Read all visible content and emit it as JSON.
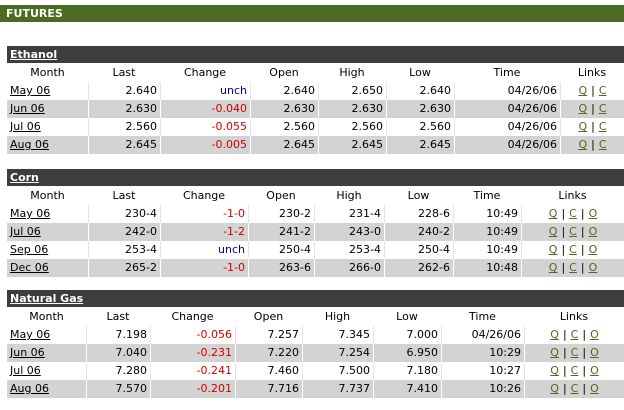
{
  "header": {
    "title": "FUTURES"
  },
  "link_separator": "|",
  "sections": [
    {
      "title": "Ethanol",
      "columns": [
        "Month",
        "Last",
        "Change",
        "Open",
        "High",
        "Low",
        "Time",
        "Links"
      ],
      "rows": [
        {
          "cells": [
            "May 06",
            "2.640",
            "unch",
            "2.640",
            "2.650",
            "2.640",
            "04/26/06"
          ],
          "links": [
            "Q",
            "C"
          ]
        },
        {
          "cells": [
            "Jun 06",
            "2.630",
            "-0.040",
            "2.630",
            "2.630",
            "2.630",
            "04/26/06"
          ],
          "links": [
            "Q",
            "C"
          ]
        },
        {
          "cells": [
            "Jul 06",
            "2.560",
            "-0.055",
            "2.560",
            "2.560",
            "2.560",
            "04/26/06"
          ],
          "links": [
            "Q",
            "C"
          ]
        },
        {
          "cells": [
            "Aug 06",
            "2.645",
            "-0.005",
            "2.645",
            "2.645",
            "2.645",
            "04/26/06"
          ],
          "links": [
            "Q",
            "C"
          ]
        }
      ]
    },
    {
      "title": "Corn",
      "columns": [
        "Month",
        "Last",
        "Change",
        "Open",
        "High",
        "Low",
        "Time",
        "Links"
      ],
      "rows": [
        {
          "cells": [
            "May 06",
            "230-4",
            "-1-0",
            "230-2",
            "231-4",
            "228-6",
            "10:49"
          ],
          "links": [
            "Q",
            "C",
            "O"
          ]
        },
        {
          "cells": [
            "Jul 06",
            "242-0",
            "-1-2",
            "241-2",
            "243-0",
            "240-2",
            "10:49"
          ],
          "links": [
            "Q",
            "C",
            "O"
          ]
        },
        {
          "cells": [
            "Sep 06",
            "253-4",
            "unch",
            "250-4",
            "253-4",
            "250-4",
            "10:49"
          ],
          "links": [
            "Q",
            "C",
            "O"
          ]
        },
        {
          "cells": [
            "Dec 06",
            "265-2",
            "-1-0",
            "263-6",
            "266-0",
            "262-6",
            "10:48"
          ],
          "links": [
            "Q",
            "C",
            "O"
          ]
        }
      ]
    },
    {
      "title": "Natural Gas",
      "columns": [
        "Month",
        "Last",
        "Change",
        "Open",
        "High",
        "Low",
        "Time",
        "Links"
      ],
      "rows": [
        {
          "cells": [
            "May 06",
            "7.198",
            "-0.056",
            "7.257",
            "7.345",
            "7.000",
            "04/26/06"
          ],
          "links": [
            "Q",
            "C",
            "O"
          ]
        },
        {
          "cells": [
            "Jun 06",
            "7.040",
            "-0.231",
            "7.220",
            "7.254",
            "6.950",
            "10:29"
          ],
          "links": [
            "Q",
            "C",
            "O"
          ]
        },
        {
          "cells": [
            "Jul 06",
            "7.280",
            "-0.241",
            "7.460",
            "7.500",
            "7.180",
            "10:27"
          ],
          "links": [
            "Q",
            "C",
            "O"
          ]
        },
        {
          "cells": [
            "Aug 06",
            "7.570",
            "-0.201",
            "7.716",
            "7.737",
            "7.410",
            "10:26"
          ],
          "links": [
            "Q",
            "C",
            "O"
          ]
        }
      ]
    }
  ]
}
